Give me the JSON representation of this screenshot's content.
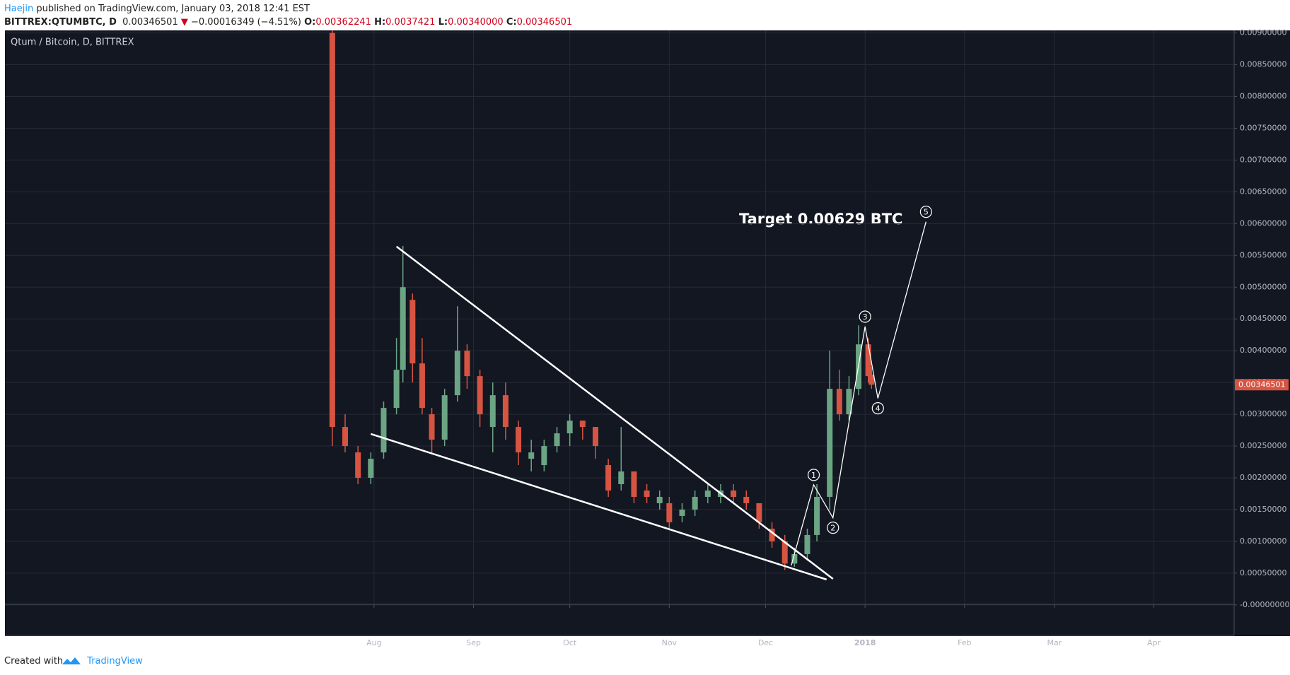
{
  "header": {
    "author": "Haejin",
    "published": "published on TradingView.com, January 03, 2018 12:41 EST",
    "symbol": "BITTREX:QTUMBTC, D",
    "direction": "▼",
    "change": "−0.00016349 (−4.51%)",
    "o_label": "O:",
    "h_label": "H:",
    "l_label": "L:",
    "l_value": "0.00340000",
    "c_label": "C:"
  },
  "footer": {
    "text": "Created with",
    "brand": "TradingView"
  },
  "chart_data": {
    "type": "candlestick",
    "title": "Qtum / Bitcoin, D, BITTREX",
    "annotation": "Target 0.00629 BTC",
    "up_color": "#6ba583",
    "down_color": "#d75442",
    "grid": true,
    "xlim": [
      -115,
      268
    ],
    "xticks": [
      {
        "value": 0,
        "label": "Aug"
      },
      {
        "value": 31,
        "label": "Sep"
      },
      {
        "value": 61,
        "label": "Oct"
      },
      {
        "value": 92,
        "label": "Nov"
      },
      {
        "value": 122,
        "label": "Dec"
      },
      {
        "value": 153,
        "label": "2018"
      },
      {
        "value": 184,
        "label": "Feb"
      },
      {
        "value": 212,
        "label": "Mar"
      },
      {
        "value": 243,
        "label": "Apr"
      }
    ],
    "ylim": [
      -0.00048,
      0.00904
    ],
    "yticks": [
      {
        "value": 0,
        "label": "-0.00000000"
      },
      {
        "value": 0.0005,
        "label": "0.00050000"
      },
      {
        "value": 0.001,
        "label": "0.00100000"
      },
      {
        "value": 0.0015,
        "label": "0.00150000"
      },
      {
        "value": 0.002,
        "label": "0.00200000"
      },
      {
        "value": 0.0025,
        "label": "0.00250000"
      },
      {
        "value": 0.003,
        "label": "0.00300000"
      },
      {
        "value": 0.0035,
        "label": "0.00350000"
      },
      {
        "value": 0.004,
        "label": "0.00400000"
      },
      {
        "value": 0.0045,
        "label": "0.00450000"
      },
      {
        "value": 0.005,
        "label": "0.00500000"
      },
      {
        "value": 0.0055,
        "label": "0.00550000"
      },
      {
        "value": 0.006,
        "label": "0.00600000"
      },
      {
        "value": 0.0065,
        "label": "0.00650000"
      },
      {
        "value": 0.007,
        "label": "0.00700000"
      },
      {
        "value": 0.0075,
        "label": "0.00750000"
      },
      {
        "value": 0.008,
        "label": "0.00800000"
      },
      {
        "value": 0.0085,
        "label": "0.00850000"
      },
      {
        "value": 0.009,
        "label": "0.00900000"
      }
    ],
    "candles": [
      {
        "x": -13,
        "open": 0.009,
        "high": 0.0091,
        "low": 0.0025,
        "close": 0.0028
      },
      {
        "x": -9,
        "open": 0.0028,
        "high": 0.003,
        "low": 0.0024,
        "close": 0.0025
      },
      {
        "x": -5,
        "open": 0.0024,
        "high": 0.0025,
        "low": 0.0019,
        "close": 0.002
      },
      {
        "x": -1,
        "open": 0.002,
        "high": 0.0024,
        "low": 0.0019,
        "close": 0.0023
      },
      {
        "x": 3,
        "open": 0.0024,
        "high": 0.0032,
        "low": 0.0023,
        "close": 0.0031
      },
      {
        "x": 7,
        "open": 0.0031,
        "high": 0.0042,
        "low": 0.003,
        "close": 0.0037
      },
      {
        "x": 9,
        "open": 0.0037,
        "high": 0.00565,
        "low": 0.0035,
        "close": 0.005
      },
      {
        "x": 12,
        "open": 0.0048,
        "high": 0.0049,
        "low": 0.0035,
        "close": 0.0038
      },
      {
        "x": 15,
        "open": 0.0038,
        "high": 0.0042,
        "low": 0.003,
        "close": 0.0031
      },
      {
        "x": 18,
        "open": 0.003,
        "high": 0.0031,
        "low": 0.0024,
        "close": 0.0026
      },
      {
        "x": 22,
        "open": 0.0026,
        "high": 0.0034,
        "low": 0.0025,
        "close": 0.0033
      },
      {
        "x": 26,
        "open": 0.0033,
        "high": 0.0047,
        "low": 0.0032,
        "close": 0.004
      },
      {
        "x": 29,
        "open": 0.004,
        "high": 0.0041,
        "low": 0.0034,
        "close": 0.0036
      },
      {
        "x": 33,
        "open": 0.0036,
        "high": 0.0037,
        "low": 0.0028,
        "close": 0.003
      },
      {
        "x": 37,
        "open": 0.0028,
        "high": 0.0035,
        "low": 0.0024,
        "close": 0.0033
      },
      {
        "x": 41,
        "open": 0.0033,
        "high": 0.0035,
        "low": 0.0026,
        "close": 0.0028
      },
      {
        "x": 45,
        "open": 0.0028,
        "high": 0.0029,
        "low": 0.0022,
        "close": 0.0024
      },
      {
        "x": 49,
        "open": 0.0023,
        "high": 0.0026,
        "low": 0.0021,
        "close": 0.0024
      },
      {
        "x": 53,
        "open": 0.0022,
        "high": 0.0026,
        "low": 0.0021,
        "close": 0.0025
      },
      {
        "x": 57,
        "open": 0.0025,
        "high": 0.0028,
        "low": 0.0024,
        "close": 0.0027
      },
      {
        "x": 61,
        "open": 0.0027,
        "high": 0.003,
        "low": 0.0025,
        "close": 0.0029
      },
      {
        "x": 65,
        "open": 0.0029,
        "high": 0.0029,
        "low": 0.0026,
        "close": 0.0028
      },
      {
        "x": 69,
        "open": 0.0028,
        "high": 0.0028,
        "low": 0.0023,
        "close": 0.0025
      },
      {
        "x": 73,
        "open": 0.0022,
        "high": 0.0023,
        "low": 0.0017,
        "close": 0.0018
      },
      {
        "x": 77,
        "open": 0.0019,
        "high": 0.0028,
        "low": 0.0018,
        "close": 0.0021
      },
      {
        "x": 81,
        "open": 0.0021,
        "high": 0.0021,
        "low": 0.0016,
        "close": 0.0017
      },
      {
        "x": 85,
        "open": 0.0018,
        "high": 0.0019,
        "low": 0.0016,
        "close": 0.0017
      },
      {
        "x": 89,
        "open": 0.0016,
        "high": 0.0018,
        "low": 0.0015,
        "close": 0.0017
      },
      {
        "x": 92,
        "open": 0.0016,
        "high": 0.0017,
        "low": 0.0012,
        "close": 0.0013
      },
      {
        "x": 96,
        "open": 0.0014,
        "high": 0.0016,
        "low": 0.0013,
        "close": 0.0015
      },
      {
        "x": 100,
        "open": 0.0015,
        "high": 0.0018,
        "low": 0.0014,
        "close": 0.0017
      },
      {
        "x": 104,
        "open": 0.0017,
        "high": 0.0019,
        "low": 0.0016,
        "close": 0.0018
      },
      {
        "x": 108,
        "open": 0.0017,
        "high": 0.0019,
        "low": 0.0016,
        "close": 0.0018
      },
      {
        "x": 112,
        "open": 0.0018,
        "high": 0.0019,
        "low": 0.0016,
        "close": 0.0017
      },
      {
        "x": 116,
        "open": 0.0017,
        "high": 0.0018,
        "low": 0.0015,
        "close": 0.0016
      },
      {
        "x": 120,
        "open": 0.0016,
        "high": 0.0016,
        "low": 0.0012,
        "close": 0.0013
      },
      {
        "x": 124,
        "open": 0.0012,
        "high": 0.0013,
        "low": 0.0009,
        "close": 0.001
      },
      {
        "x": 128,
        "open": 0.001,
        "high": 0.0011,
        "low": 0.00055,
        "close": 0.00065
      },
      {
        "x": 131,
        "open": 0.00065,
        "high": 0.0009,
        "low": 0.0006,
        "close": 0.0008
      },
      {
        "x": 155,
        "open": 0.00362241,
        "high": 0.0037421,
        "low": 0.0034,
        "close": 0.00346501
      },
      {
        "x": 135,
        "open": 0.0008,
        "high": 0.0012,
        "low": 0.0007,
        "close": 0.0011
      },
      {
        "x": 138,
        "open": 0.0011,
        "high": 0.0019,
        "low": 0.001,
        "close": 0.0017
      },
      {
        "x": 142,
        "open": 0.0017,
        "high": 0.004,
        "low": 0.0015,
        "close": 0.0034
      },
      {
        "x": 145,
        "open": 0.0034,
        "high": 0.0037,
        "low": 0.0029,
        "close": 0.003
      },
      {
        "x": 148,
        "open": 0.003,
        "high": 0.0036,
        "low": 0.0029,
        "close": 0.0034
      },
      {
        "x": 151,
        "open": 0.0034,
        "high": 0.0044,
        "low": 0.0033,
        "close": 0.0041
      },
      {
        "x": 154,
        "open": 0.0041,
        "high": 0.0042,
        "low": 0.0035,
        "close": 0.0036
      }
    ],
    "trend_lines": [
      {
        "x": [
          7,
          143
        ],
        "y": [
          0.00564,
          0.00041
        ]
      },
      {
        "x": [
          -1,
          141
        ],
        "y": [
          0.00269,
          0.0004
        ]
      }
    ],
    "waves": {
      "x": [
        130,
        137,
        143,
        153,
        157,
        172
      ],
      "y": [
        0.00062,
        0.00189,
        0.00137,
        0.00438,
        0.00325,
        0.00603
      ],
      "labels": [
        null,
        "1",
        "2",
        "3",
        "4",
        "5"
      ]
    }
  }
}
